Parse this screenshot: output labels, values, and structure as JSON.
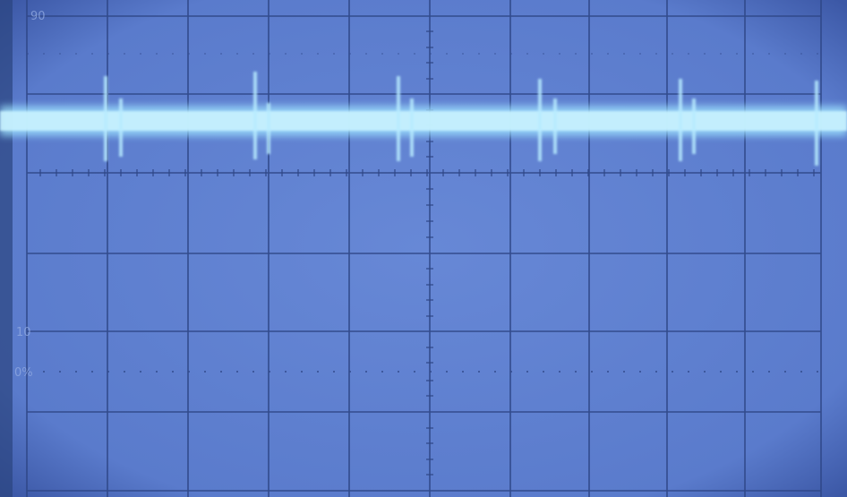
{
  "graticule_labels": {
    "top": "90",
    "upper": "10",
    "zero": "0%"
  }
}
